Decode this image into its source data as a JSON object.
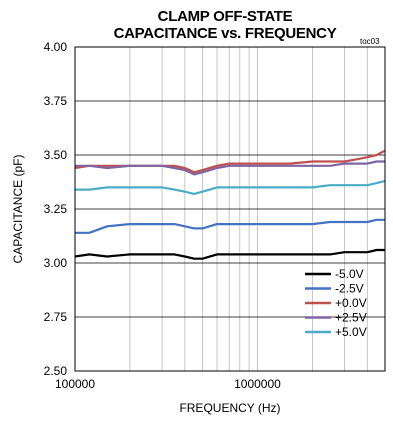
{
  "chart_data": {
    "type": "line",
    "title_line1": "CLAMP OFF-STATE",
    "title_line2": "CAPACITANCE vs. FREQUENCY",
    "tag": "toc03",
    "xlabel": "FREQUENCY (Hz)",
    "ylabel": "CAPACITANCE (pF)",
    "xscale": "log",
    "xlim": [
      100000,
      5000000
    ],
    "ylim": [
      2.5,
      4.0
    ],
    "yticks": [
      "2.50",
      "2.75",
      "3.00",
      "3.25",
      "3.50",
      "3.75",
      "4.00"
    ],
    "xticks": [
      "100000",
      "1000000"
    ],
    "grid": true,
    "legend_position": "bottom-right",
    "x": [
      100000,
      120000,
      150000,
      200000,
      250000,
      300000,
      350000,
      400000,
      450000,
      500000,
      600000,
      700000,
      800000,
      1000000,
      1200000,
      1500000,
      2000000,
      2500000,
      3000000,
      3500000,
      4000000,
      4500000,
      5000000
    ],
    "series": [
      {
        "name": "-5.0V",
        "color": "#000000",
        "values": [
          3.03,
          3.04,
          3.03,
          3.04,
          3.04,
          3.04,
          3.04,
          3.03,
          3.02,
          3.02,
          3.04,
          3.04,
          3.04,
          3.04,
          3.04,
          3.04,
          3.04,
          3.04,
          3.05,
          3.05,
          3.05,
          3.06,
          3.06
        ]
      },
      {
        "name": "-2.5V",
        "color": "#4472C4",
        "values": [
          3.14,
          3.14,
          3.17,
          3.18,
          3.18,
          3.18,
          3.18,
          3.17,
          3.16,
          3.16,
          3.18,
          3.18,
          3.18,
          3.18,
          3.18,
          3.18,
          3.18,
          3.19,
          3.19,
          3.19,
          3.19,
          3.2,
          3.2
        ]
      },
      {
        "name": "+0.0V",
        "color": "#C0504D",
        "values": [
          3.44,
          3.45,
          3.45,
          3.45,
          3.45,
          3.45,
          3.45,
          3.44,
          3.42,
          3.43,
          3.45,
          3.46,
          3.46,
          3.46,
          3.46,
          3.46,
          3.47,
          3.47,
          3.47,
          3.48,
          3.49,
          3.5,
          3.52
        ]
      },
      {
        "name": "+2.5V",
        "color": "#8064A2",
        "values": [
          3.45,
          3.45,
          3.44,
          3.45,
          3.45,
          3.45,
          3.44,
          3.43,
          3.41,
          3.42,
          3.44,
          3.45,
          3.45,
          3.45,
          3.45,
          3.45,
          3.45,
          3.45,
          3.46,
          3.46,
          3.46,
          3.47,
          3.47
        ]
      },
      {
        "name": "+5.0V",
        "color": "#4BACC6",
        "values": [
          3.34,
          3.34,
          3.35,
          3.35,
          3.35,
          3.35,
          3.34,
          3.33,
          3.32,
          3.33,
          3.35,
          3.35,
          3.35,
          3.35,
          3.35,
          3.35,
          3.35,
          3.36,
          3.36,
          3.36,
          3.36,
          3.37,
          3.38
        ]
      }
    ]
  }
}
